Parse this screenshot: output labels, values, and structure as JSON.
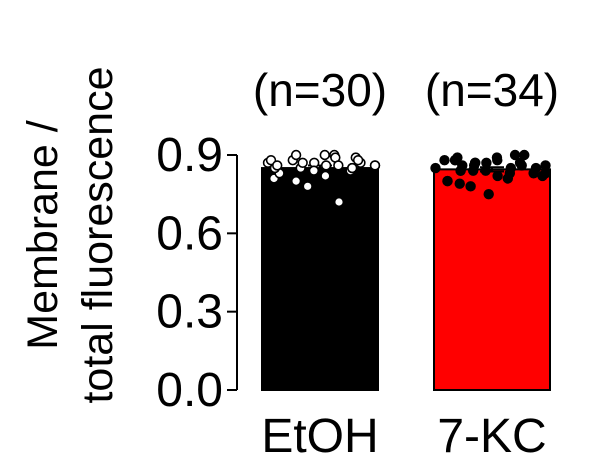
{
  "chart_data": {
    "type": "bar",
    "categories": [
      "EtOH",
      "7-KC"
    ],
    "values": [
      0.85,
      0.845
    ],
    "error": [
      0.01,
      0.008
    ],
    "sample_labels": [
      "(n=30)",
      "(n=34)"
    ],
    "bar_colors": [
      "#000000",
      "#ff0000"
    ],
    "ylabel_lines": [
      "Membrane /",
      "total fluorescence"
    ],
    "ylim": [
      0,
      0.9
    ],
    "yticks": [
      "0.0",
      "0.3",
      "0.6",
      "0.9"
    ],
    "grid": false,
    "legend": "none",
    "points": [
      [
        0.81,
        0.83,
        0.88,
        0.85,
        0.87,
        0.82,
        0.9,
        0.84,
        0.89,
        0.86,
        0.87,
        0.85,
        0.9,
        0.78,
        0.84,
        0.86,
        0.89,
        0.85,
        0.87,
        0.72,
        0.88,
        0.86,
        0.8,
        0.87,
        0.84,
        0.9,
        0.86,
        0.85,
        0.88,
        0.86
      ],
      [
        0.8,
        0.89,
        0.84,
        0.87,
        0.75,
        0.88,
        0.83,
        0.86,
        0.9,
        0.82,
        0.85,
        0.88,
        0.78,
        0.86,
        0.84,
        0.89,
        0.81,
        0.87,
        0.85,
        0.83,
        0.88,
        0.79,
        0.86,
        0.84,
        0.87,
        0.82,
        0.85,
        0.9,
        0.83,
        0.86,
        0.8,
        0.88,
        0.84,
        0.87
      ]
    ]
  }
}
